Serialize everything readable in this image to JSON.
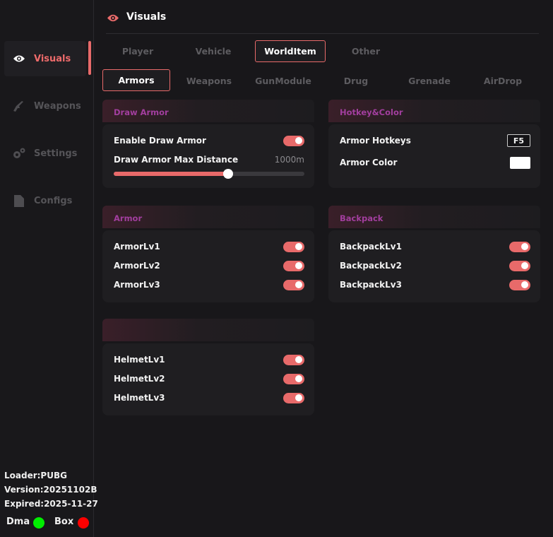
{
  "header": {
    "title": "Visuals",
    "icon": "eye-icon"
  },
  "sidebar": {
    "items": [
      {
        "label": "Visuals",
        "icon": "eye-icon",
        "active": true
      },
      {
        "label": "Weapons",
        "icon": "rifle-icon"
      },
      {
        "label": "Settings",
        "icon": "gears-icon"
      },
      {
        "label": "Configs",
        "icon": "file-icon"
      }
    ],
    "info": {
      "loader": "Loader:PUBG",
      "version": "Version:20251102B",
      "expired": "Expired:2025-11-27",
      "dma": "Dma",
      "box": "Box",
      "dma_color": "#00ee00",
      "box_color": "#ff0000"
    }
  },
  "tabs": [
    {
      "label": "Player"
    },
    {
      "label": "Vehicle"
    },
    {
      "label": "WorldItem",
      "selected": true
    },
    {
      "label": "Other"
    }
  ],
  "subtabs": [
    {
      "label": "Armors",
      "selected": true
    },
    {
      "label": "Weapons"
    },
    {
      "label": "GunModule"
    },
    {
      "label": "Drug"
    },
    {
      "label": "Grenade"
    },
    {
      "label": "AirDrop"
    }
  ],
  "panels": {
    "draw_armor": {
      "title": "Draw Armor",
      "enable_label": "Enable Draw Armor",
      "enable": true,
      "distance_label": "Draw Armor Max Distance",
      "distance_value": "1000m",
      "slider_fraction": 0.6
    },
    "hotkey_color": {
      "title": "Hotkey&Color",
      "hotkey_label": "Armor Hotkeys",
      "hotkey_value": "F5",
      "color_label": "Armor Color",
      "color": "#ffffff"
    },
    "armor": {
      "title": "Armor",
      "items": [
        {
          "label": "ArmorLv1",
          "on": true
        },
        {
          "label": "ArmorLv2",
          "on": true
        },
        {
          "label": "ArmorLv3",
          "on": true
        }
      ]
    },
    "backpack": {
      "title": "Backpack",
      "items": [
        {
          "label": "BackpackLv1",
          "on": true
        },
        {
          "label": "BackpackLv2",
          "on": true
        },
        {
          "label": "BackpackLv3",
          "on": true
        }
      ]
    },
    "helmet": {
      "title": "",
      "items": [
        {
          "label": "HelmetLv1",
          "on": true
        },
        {
          "label": "HelmetLv2",
          "on": true
        },
        {
          "label": "HelmetLv3",
          "on": true
        }
      ]
    }
  },
  "colors": {
    "accent": "#e86a6a",
    "section_title": "#a23e9e"
  }
}
